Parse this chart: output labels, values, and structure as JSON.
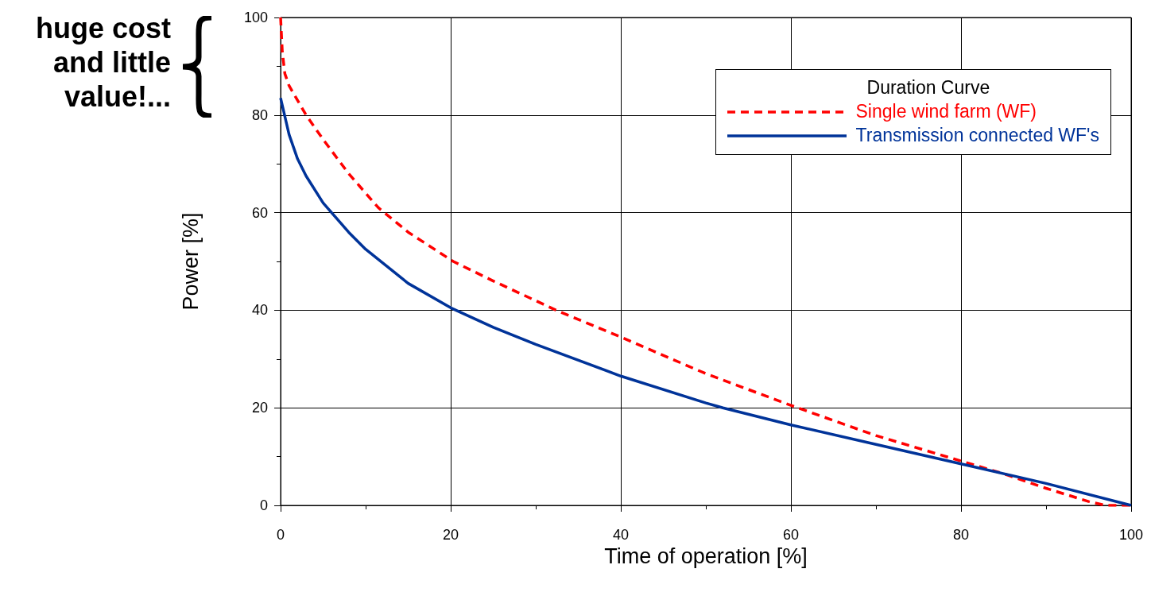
{
  "chart_data": {
    "type": "line",
    "xlabel": "Time of operation [%]",
    "ylabel": "Power [%]",
    "legend_title": "Duration Curve",
    "annotations": [
      "huge cost and little value!..."
    ],
    "xlim": [
      0,
      100
    ],
    "xticks": [
      0,
      20,
      40,
      60,
      80,
      100
    ],
    "ylim": [
      0,
      100
    ],
    "yticks": [
      0,
      20,
      40,
      60,
      80,
      100
    ],
    "grid": true,
    "legend": "top right",
    "marker": "none",
    "series": [
      {
        "name": "Single wind farm (WF)",
        "color": "#ff0000",
        "line_style": "dashed",
        "x": [
          0,
          0.2,
          0.5,
          1,
          2,
          3,
          5,
          8,
          11.5,
          15,
          20.3,
          25,
          32.4,
          40,
          50,
          60,
          70,
          80,
          85,
          90,
          95,
          97,
          100
        ],
        "values": [
          100,
          93,
          88.5,
          86,
          83,
          80,
          75,
          68,
          61,
          56,
          50,
          46,
          40,
          34.5,
          27,
          20.5,
          14.3,
          9.1,
          6.5,
          3.5,
          0.8,
          0,
          0
        ]
      },
      {
        "name": "Transmission connected WF's",
        "color": "#003399",
        "line_style": "solid",
        "x": [
          0,
          1,
          2,
          3,
          5,
          6,
          8,
          10,
          15,
          20,
          25,
          30,
          40,
          50,
          52,
          60,
          70,
          80,
          90,
          100
        ],
        "values": [
          83.5,
          76,
          71,
          67.5,
          62,
          60,
          56,
          52.5,
          45.5,
          40.5,
          36.5,
          33,
          26.5,
          21,
          20,
          16.5,
          12.5,
          8.5,
          4.5,
          0
        ]
      }
    ]
  }
}
